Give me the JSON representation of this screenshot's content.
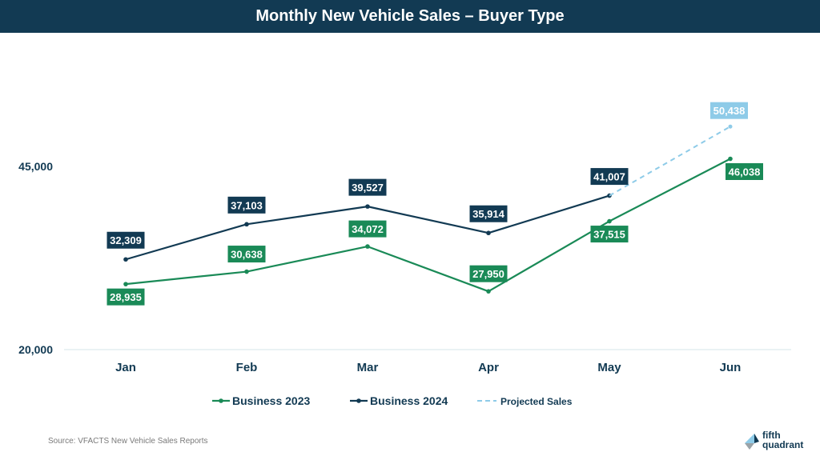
{
  "header": {
    "title": "Monthly New Vehicle Sales – Buyer Type"
  },
  "colors": {
    "header_bg": "#123a53",
    "business_2023": "#1a8a57",
    "business_2024": "#123a53",
    "projected": "#8ecbe8"
  },
  "chart_data": {
    "type": "line",
    "title": "Monthly New Vehicle Sales – Buyer Type",
    "categories": [
      "Jan",
      "Feb",
      "Mar",
      "Apr",
      "May",
      "Jun"
    ],
    "yticks": [
      20000,
      45000
    ],
    "ytick_labels": [
      "20,000",
      "45,000"
    ],
    "ylim": [
      20000,
      45000
    ],
    "grid": false,
    "legend_position": "bottom-center",
    "series": [
      {
        "name": "Business 2023",
        "style": "solid",
        "color": "#1a8a57",
        "values": [
          28935,
          30638,
          34072,
          27950,
          37515,
          46038
        ],
        "labels": [
          "28,935",
          "30,638",
          "34,072",
          "27,950",
          "37,515",
          "46,038"
        ]
      },
      {
        "name": "Business 2024",
        "style": "solid",
        "color": "#123a53",
        "values": [
          32309,
          37103,
          39527,
          35914,
          41007,
          null
        ],
        "labels": [
          "32,309",
          "37,103",
          "39,527",
          "35,914",
          "41,007",
          null
        ]
      },
      {
        "name": "Projected Sales",
        "style": "dashed",
        "color": "#8ecbe8",
        "values": [
          null,
          null,
          null,
          null,
          41007,
          50438
        ],
        "labels": [
          null,
          null,
          null,
          null,
          null,
          "50,438"
        ]
      }
    ]
  },
  "footer": {
    "source": "Source: VFACTS New Vehicle Sales Reports",
    "logo_line1": "fifth",
    "logo_line2": "quadrant"
  }
}
